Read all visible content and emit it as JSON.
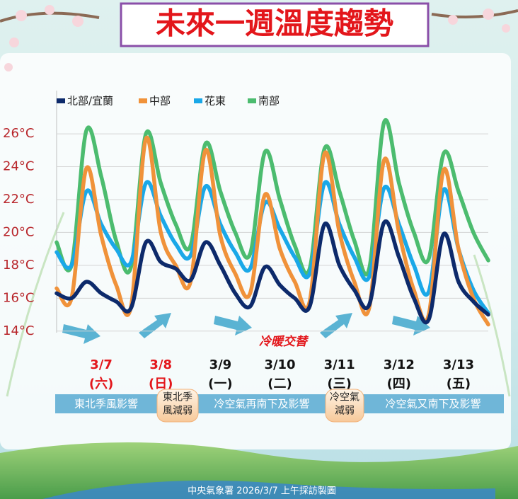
{
  "chart_data": {
    "type": "line",
    "title": "未來一週溫度趨勢",
    "categories": [
      null,
      null,
      null,
      "3/7",
      null,
      null,
      null,
      "3/8",
      null,
      null,
      null,
      "3/9",
      null,
      null,
      null,
      "3/10",
      null,
      null,
      null,
      "3/11",
      null,
      null,
      null,
      "3/12",
      null,
      null,
      null,
      "3/13",
      null,
      null
    ],
    "weekdays": [
      null,
      null,
      null,
      "(六)",
      null,
      null,
      null,
      "(日)",
      null,
      null,
      null,
      "(一)",
      null,
      null,
      null,
      "(二)",
      null,
      null,
      null,
      "(三)",
      null,
      null,
      null,
      "(四)",
      null,
      null,
      null,
      "(五)",
      null,
      null
    ],
    "x_label_colors": [
      null,
      null,
      null,
      "#e3161b",
      null,
      null,
      null,
      "#e3161b",
      null,
      null,
      null,
      "#111111",
      null,
      null,
      null,
      "#111111",
      null,
      null,
      null,
      "#111111",
      null,
      null,
      null,
      "#111111",
      null,
      null,
      null,
      "#111111",
      null,
      null
    ],
    "series": [
      {
        "name": "北部/宜蘭",
        "color": "#0d2a6b",
        "values": [
          16.3,
          16.0,
          17.0,
          16.3,
          15.8,
          15.4,
          19.4,
          18.2,
          17.8,
          17.1,
          19.4,
          18.0,
          16.3,
          15.5,
          17.9,
          16.8,
          16.0,
          15.5,
          20.5,
          18.0,
          16.5,
          15.6,
          20.6,
          18.5,
          16.0,
          14.7,
          19.9,
          17.0,
          15.8,
          15.0
        ]
      },
      {
        "name": "中部",
        "color": "#f0923a",
        "values": [
          16.6,
          16.0,
          23.9,
          19.8,
          16.8,
          15.5,
          25.7,
          20.0,
          18.0,
          17.0,
          25.0,
          19.8,
          17.5,
          16.3,
          22.3,
          19.0,
          17.0,
          15.8,
          24.8,
          20.0,
          17.0,
          15.4,
          24.4,
          20.0,
          16.5,
          15.0,
          23.8,
          19.0,
          16.0,
          14.4
        ]
      },
      {
        "name": "花東",
        "color": "#1aa8e8",
        "values": [
          18.8,
          18.0,
          22.5,
          20.5,
          19.0,
          18.2,
          23.0,
          21.0,
          19.3,
          18.6,
          22.8,
          20.5,
          18.8,
          17.8,
          21.8,
          20.2,
          18.5,
          17.5,
          23.0,
          20.5,
          18.5,
          17.3,
          22.7,
          20.5,
          18.0,
          16.4,
          22.6,
          19.0,
          16.5,
          15.1
        ]
      },
      {
        "name": "南部",
        "color": "#4cbc6f",
        "values": [
          19.4,
          18.0,
          26.2,
          23.4,
          19.5,
          17.9,
          26.0,
          23.0,
          20.5,
          19.2,
          25.4,
          22.5,
          20.0,
          18.7,
          24.9,
          22.0,
          19.2,
          17.8,
          25.1,
          22.5,
          19.5,
          17.8,
          26.7,
          23.0,
          20.0,
          18.4,
          24.8,
          22.5,
          20.0,
          18.3
        ]
      }
    ],
    "ylim": [
      13,
      28.5
    ],
    "yticks": [
      {
        "value": 14,
        "label": "14°C"
      },
      {
        "value": 16,
        "label": "16°C"
      },
      {
        "value": 18,
        "label": "18°C"
      },
      {
        "value": 20,
        "label": "20°C"
      },
      {
        "value": 22,
        "label": "22°C"
      },
      {
        "value": 24,
        "label": "24°C"
      },
      {
        "value": 26,
        "label": "26°C"
      }
    ],
    "grid": true,
    "annotation": "冷暖交替"
  },
  "bands": [
    {
      "lines": [
        "東北季風影響"
      ],
      "style": "bar"
    },
    {
      "lines": [
        "東北季",
        "風減弱"
      ],
      "style": "pill"
    },
    {
      "lines": [
        "冷空氣再南下及影響"
      ],
      "style": "bar"
    },
    {
      "lines": [
        "冷空氣",
        "減弱"
      ],
      "style": "pill"
    },
    {
      "lines": [
        "冷空氣又南下及影響"
      ],
      "style": "bar"
    }
  ],
  "footer": "中央氣象署 2026/3/7 上午採訪製圖"
}
